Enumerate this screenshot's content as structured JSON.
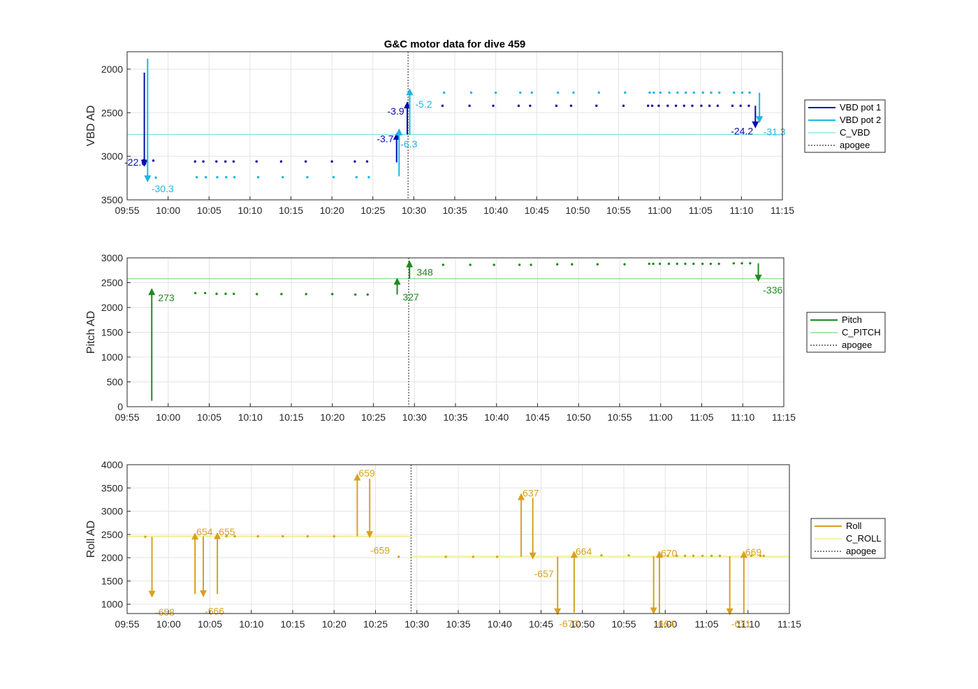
{
  "chart_data": [
    {
      "type": "line",
      "title": "G&C motor data for dive 459",
      "ylabel": "VBD AD",
      "ylim": [
        1800,
        3500
      ],
      "yreverse": true,
      "yticks": [
        2000,
        2500,
        3000,
        3500
      ],
      "xlim": [
        "09:55",
        "11:15"
      ],
      "xticks": [
        "09:55",
        "10:00",
        "10:05",
        "10:10",
        "10:15",
        "10:20",
        "10:25",
        "10:30",
        "10:35",
        "10:40",
        "10:45",
        "10:50",
        "10:55",
        "11:00",
        "11:05",
        "11:10",
        "11:15"
      ],
      "grid": true,
      "legend": {
        "placement": "outside-right",
        "entries": [
          {
            "label": "VBD pot 1",
            "color": "#0a0ab0",
            "style": "thick"
          },
          {
            "label": "VBD pot 2",
            "color": "#1cb5e6",
            "style": "thick"
          },
          {
            "label": "C_VBD",
            "color": "#7ee0e6",
            "style": "thin"
          },
          {
            "label": "apogee",
            "color": "#555555",
            "style": "dotted"
          }
        ]
      },
      "hlines": [
        {
          "name": "C_VBD",
          "y": 2750,
          "color": "#7ee0e6"
        }
      ],
      "apogee_x": "10:29.3",
      "series": [
        {
          "name": "VBD pot 1",
          "color": "#0a0ab0",
          "dots": [
            [
              "09:58.2",
              3050
            ],
            [
              "10:03.3",
              3060
            ],
            [
              "10:04.3",
              3060
            ],
            [
              "10:05.9",
              3060
            ],
            [
              "10:07.0",
              3060
            ],
            [
              "10:08.0",
              3060
            ],
            [
              "10:10.8",
              3060
            ],
            [
              "10:13.8",
              3060
            ],
            [
              "10:16.8",
              3060
            ],
            [
              "10:20.0",
              3060
            ],
            [
              "10:22.8",
              3060
            ],
            [
              "10:24.3",
              3060
            ],
            [
              "10:33.5",
              2420
            ],
            [
              "10:36.8",
              2420
            ],
            [
              "10:39.7",
              2420
            ],
            [
              "10:42.8",
              2420
            ],
            [
              "10:44.2",
              2420
            ],
            [
              "10:47.4",
              2420
            ],
            [
              "10:49.2",
              2420
            ],
            [
              "10:52.3",
              2420
            ],
            [
              "10:55.6",
              2420
            ],
            [
              "10:58.6",
              2420
            ],
            [
              "10:59.1",
              2420
            ],
            [
              "10:59.9",
              2420
            ],
            [
              "11:01.0",
              2420
            ],
            [
              "11:02.0",
              2420
            ],
            [
              "11:03.0",
              2420
            ],
            [
              "11:04.0",
              2420
            ],
            [
              "11:05.1",
              2420
            ],
            [
              "11:06.1",
              2420
            ],
            [
              "11:07.1",
              2420
            ],
            [
              "11:08.9",
              2420
            ],
            [
              "11:09.9",
              2420
            ],
            [
              "11:10.9",
              2420
            ]
          ]
        },
        {
          "name": "VBD pot 2",
          "color": "#1cb5e6",
          "dots": [
            [
              "09:58.5",
              3245
            ],
            [
              "10:03.5",
              3240
            ],
            [
              "10:04.6",
              3240
            ],
            [
              "10:06.0",
              3240
            ],
            [
              "10:07.1",
              3240
            ],
            [
              "10:08.1",
              3240
            ],
            [
              "10:11.0",
              3240
            ],
            [
              "10:14.0",
              3240
            ],
            [
              "10:17.0",
              3240
            ],
            [
              "10:20.2",
              3240
            ],
            [
              "10:23.0",
              3240
            ],
            [
              "10:24.5",
              3240
            ],
            [
              "10:33.7",
              2270
            ],
            [
              "10:37.0",
              2270
            ],
            [
              "10:40.0",
              2270
            ],
            [
              "10:43.0",
              2270
            ],
            [
              "10:44.4",
              2270
            ],
            [
              "10:47.6",
              2270
            ],
            [
              "10:49.5",
              2270
            ],
            [
              "10:52.6",
              2270
            ],
            [
              "10:55.8",
              2270
            ],
            [
              "10:58.8",
              2270
            ],
            [
              "10:59.3",
              2270
            ],
            [
              "11:00.1",
              2270
            ],
            [
              "11:01.2",
              2270
            ],
            [
              "11:02.2",
              2270
            ],
            [
              "11:03.2",
              2270
            ],
            [
              "11:04.2",
              2270
            ],
            [
              "11:05.3",
              2270
            ],
            [
              "11:06.3",
              2270
            ],
            [
              "11:07.3",
              2270
            ],
            [
              "11:09.1",
              2270
            ],
            [
              "11:10.1",
              2270
            ],
            [
              "11:11.0",
              2270
            ]
          ]
        }
      ],
      "arrows": [
        {
          "x": "09:57.1",
          "y0": 2040,
          "y1": 3120,
          "color": "#0a0ab0",
          "label": "-22.0",
          "lx": "09:54.5",
          "ly": 3065,
          "anchor": "start"
        },
        {
          "x": "09:57.5",
          "y0": 1880,
          "y1": 3300,
          "color": "#1cb5e6",
          "label": "-30.3",
          "lx": "09:57.8",
          "ly": 3370,
          "anchor": "start"
        },
        {
          "x": "10:27.9",
          "y0": 3070,
          "y1": 2730,
          "color": "#0a0ab0",
          "label": "-3.7",
          "lx": "10:27.7",
          "ly": 2800,
          "anchor": "end"
        },
        {
          "x": "10:28.2",
          "y0": 3230,
          "y1": 2680,
          "color": "#1cb5e6",
          "label": "-6.3",
          "lx": "10:28.2",
          "ly": 2860,
          "anchor": "start"
        },
        {
          "x": "10:29.2",
          "y0": 2750,
          "y1": 2370,
          "color": "#0a0ab0",
          "label": "-3.9",
          "lx": "10:29.0",
          "ly": 2480,
          "anchor": "end"
        },
        {
          "x": "10:29.5",
          "y0": 2750,
          "y1": 2220,
          "color": "#1cb5e6",
          "label": "-5.2",
          "lx": "10:30.0",
          "ly": 2400,
          "anchor": "start"
        },
        {
          "x": "11:11.7",
          "y0": 2420,
          "y1": 2680,
          "color": "#0a0ab0",
          "label": "-24.2",
          "lx": "11:11.6",
          "ly": 2710,
          "anchor": "end"
        },
        {
          "x": "11:12.2",
          "y0": 2270,
          "y1": 2620,
          "color": "#1cb5e6",
          "label": "-31.3",
          "lx": "11:12.5",
          "ly": 2720,
          "anchor": "start"
        }
      ]
    },
    {
      "type": "line",
      "title": "",
      "ylabel": "Pitch AD",
      "ylim": [
        0,
        3000
      ],
      "yreverse": false,
      "yticks": [
        0,
        500,
        1000,
        1500,
        2000,
        2500,
        3000
      ],
      "xlim": [
        "09:55",
        "11:15"
      ],
      "xticks": [
        "09:55",
        "10:00",
        "10:05",
        "10:10",
        "10:15",
        "10:20",
        "10:25",
        "10:30",
        "10:35",
        "10:40",
        "10:45",
        "10:50",
        "10:55",
        "11:00",
        "11:05",
        "11:10",
        "11:15"
      ],
      "grid": true,
      "legend": {
        "placement": "outside-right",
        "entries": [
          {
            "label": "Pitch",
            "color": "#1e8a1e",
            "style": "thick"
          },
          {
            "label": "C_PITCH",
            "color": "#7cd67c",
            "style": "thin"
          },
          {
            "label": "apogee",
            "color": "#555555",
            "style": "dotted"
          }
        ]
      },
      "hlines": [
        {
          "name": "C_PITCH",
          "y": 2580,
          "color": "#7cd67c"
        }
      ],
      "apogee_x": "10:29.3",
      "series": [
        {
          "name": "Pitch",
          "color": "#1e8a1e",
          "dots": [
            [
              "10:03.3",
              2290
            ],
            [
              "10:04.5",
              2290
            ],
            [
              "10:05.9",
              2275
            ],
            [
              "10:07.0",
              2275
            ],
            [
              "10:08.0",
              2275
            ],
            [
              "10:10.8",
              2270
            ],
            [
              "10:13.8",
              2270
            ],
            [
              "10:16.8",
              2270
            ],
            [
              "10:20.0",
              2270
            ],
            [
              "10:22.8",
              2260
            ],
            [
              "10:24.3",
              2260
            ],
            [
              "10:33.5",
              2860
            ],
            [
              "10:36.8",
              2860
            ],
            [
              "10:39.7",
              2860
            ],
            [
              "10:42.8",
              2860
            ],
            [
              "10:44.2",
              2860
            ],
            [
              "10:47.4",
              2870
            ],
            [
              "10:49.2",
              2870
            ],
            [
              "10:52.3",
              2870
            ],
            [
              "10:55.6",
              2870
            ],
            [
              "10:58.6",
              2880
            ],
            [
              "10:59.1",
              2880
            ],
            [
              "10:59.9",
              2880
            ],
            [
              "11:01.0",
              2880
            ],
            [
              "11:02.0",
              2880
            ],
            [
              "11:03.0",
              2880
            ],
            [
              "11:04.0",
              2880
            ],
            [
              "11:05.1",
              2880
            ],
            [
              "11:06.1",
              2880
            ],
            [
              "11:07.1",
              2880
            ],
            [
              "11:08.9",
              2890
            ],
            [
              "11:09.9",
              2890
            ],
            [
              "11:10.9",
              2890
            ]
          ]
        }
      ],
      "arrows": [
        {
          "x": "09:58.0",
          "y0": 120,
          "y1": 2390,
          "color": "#1e8a1e",
          "label": "273",
          "lx": "09:58.6",
          "ly": 2200,
          "anchor": "start"
        },
        {
          "x": "10:27.9",
          "y0": 2260,
          "y1": 2600,
          "color": "#1e8a1e",
          "label": "327",
          "lx": "10:28.4",
          "ly": 2210,
          "anchor": "start"
        },
        {
          "x": "10:29.4",
          "y0": 2580,
          "y1": 2950,
          "color": "#1e8a1e",
          "label": "348",
          "lx": "10:30.1",
          "ly": 2710,
          "anchor": "start"
        },
        {
          "x": "11:11.9",
          "y0": 2890,
          "y1": 2520,
          "color": "#1e8a1e",
          "label": "-336",
          "lx": "11:12.3",
          "ly": 2350,
          "anchor": "start"
        }
      ]
    },
    {
      "type": "line",
      "title": "",
      "ylabel": "Roll AD",
      "ylim": [
        800,
        4000
      ],
      "yreverse": false,
      "yticks": [
        1000,
        1500,
        2000,
        2500,
        3000,
        3500,
        4000
      ],
      "xlim": [
        "09:55",
        "11:15"
      ],
      "xticks": [
        "09:55",
        "10:00",
        "10:05",
        "10:10",
        "10:15",
        "10:20",
        "10:25",
        "10:30",
        "10:35",
        "10:40",
        "10:45",
        "10:50",
        "10:55",
        "11:00",
        "11:05",
        "11:10",
        "11:15"
      ],
      "grid": true,
      "legend": {
        "placement": "outside-right",
        "entries": [
          {
            "label": "Roll",
            "color": "#d8a11f",
            "style": "thick"
          },
          {
            "label": "C_ROLL",
            "color": "#eeea70",
            "style": "thin"
          },
          {
            "label": "apogee",
            "color": "#555555",
            "style": "dotted"
          }
        ]
      },
      "hlines": [
        {
          "name": "C_ROLL",
          "y": 2460,
          "color": "#eeea70",
          "x0": "09:55",
          "x1": "10:29.3"
        },
        {
          "name": "C_ROLL",
          "y": 2030,
          "color": "#eeea70",
          "x0": "10:29.3",
          "x1": "11:15"
        }
      ],
      "apogee_x": "10:29.3",
      "series": [
        {
          "name": "Roll",
          "color": "#d8a11f",
          "dots": [
            [
              "09:57.2",
              2450
            ],
            [
              "10:07.0",
              2460
            ],
            [
              "10:08.0",
              2460
            ],
            [
              "10:10.8",
              2460
            ],
            [
              "10:13.8",
              2460
            ],
            [
              "10:16.8",
              2460
            ],
            [
              "10:20.0",
              2460
            ],
            [
              "10:27.8",
              2020
            ],
            [
              "10:33.5",
              2020
            ],
            [
              "10:36.8",
              2020
            ],
            [
              "10:39.7",
              2020
            ],
            [
              "10:52.3",
              2050
            ],
            [
              "10:55.6",
              2050
            ],
            [
              "11:00.3",
              2040
            ],
            [
              "11:01.4",
              2040
            ],
            [
              "11:02.4",
              2040
            ],
            [
              "11:03.4",
              2040
            ],
            [
              "11:04.5",
              2040
            ],
            [
              "11:05.6",
              2040
            ],
            [
              "11:06.6",
              2040
            ],
            [
              "11:10.4",
              2040
            ],
            [
              "11:11.5",
              2040
            ],
            [
              "11:11.9",
              2040
            ]
          ]
        }
      ],
      "arrows": [
        {
          "x": "09:58.0",
          "y0": 2450,
          "y1": 1140,
          "color": "#d8a11f",
          "label": "-658",
          "lx": "09:58.2",
          "ly": 830,
          "anchor": "start"
        },
        {
          "x": "10:03.2",
          "y0": 1220,
          "y1": 2540,
          "color": "#d8a11f",
          "label": "654",
          "lx": "10:03.2",
          "ly": 2560,
          "anchor": "start"
        },
        {
          "x": "10:04.2",
          "y0": 2460,
          "y1": 1150,
          "color": "#d8a11f",
          "label": "-666",
          "lx": "10:04.2",
          "ly": 850,
          "anchor": "start"
        },
        {
          "x": "10:05.9",
          "y0": 1220,
          "y1": 2550,
          "color": "#d8a11f",
          "label": "655",
          "lx": "10:05.9",
          "ly": 2560,
          "anchor": "start"
        },
        {
          "x": "10:22.8",
          "y0": 2460,
          "y1": 3810,
          "color": "#d8a11f",
          "label": "659",
          "lx": "10:22.8",
          "ly": 3820,
          "anchor": "start"
        },
        {
          "x": "10:24.3",
          "y0": 3700,
          "y1": 2420,
          "color": "#d8a11f",
          "label": "-659",
          "lx": "10:24.2",
          "ly": 2160,
          "anchor": "start"
        },
        {
          "x": "10:42.6",
          "y0": 2020,
          "y1": 3390,
          "color": "#d8a11f",
          "label": "637",
          "lx": "10:42.6",
          "ly": 3390,
          "anchor": "start"
        },
        {
          "x": "10:44.0",
          "y0": 3290,
          "y1": 1960,
          "color": "#d8a11f",
          "label": "-657",
          "lx": "10:44.0",
          "ly": 1660,
          "anchor": "start"
        },
        {
          "x": "10:47.0",
          "y0": 2020,
          "y1": 760,
          "color": "#d8a11f",
          "label": "-673",
          "lx": "10:47.0",
          "ly": 580,
          "anchor": "start"
        },
        {
          "x": "10:49.0",
          "y0": 820,
          "y1": 2150,
          "color": "#d8a11f",
          "label": "664",
          "lx": "10:49.0",
          "ly": 2140,
          "anchor": "start"
        },
        {
          "x": "10:58.6",
          "y0": 2030,
          "y1": 780,
          "color": "#d8a11f",
          "label": "-664",
          "lx": "10:58.6",
          "ly": 580,
          "anchor": "start"
        },
        {
          "x": "10:59.3",
          "y0": 800,
          "y1": 2150,
          "color": "#d8a11f",
          "label": "670",
          "lx": "10:59.3",
          "ly": 2100,
          "anchor": "start"
        },
        {
          "x": "11:07.8",
          "y0": 2030,
          "y1": 760,
          "color": "#d8a11f",
          "label": "-671",
          "lx": "11:07.8",
          "ly": 580,
          "anchor": "start"
        },
        {
          "x": "11:09.5",
          "y0": 810,
          "y1": 2150,
          "color": "#d8a11f",
          "label": "669",
          "lx": "11:09.5",
          "ly": 2120,
          "anchor": "start"
        }
      ]
    }
  ]
}
